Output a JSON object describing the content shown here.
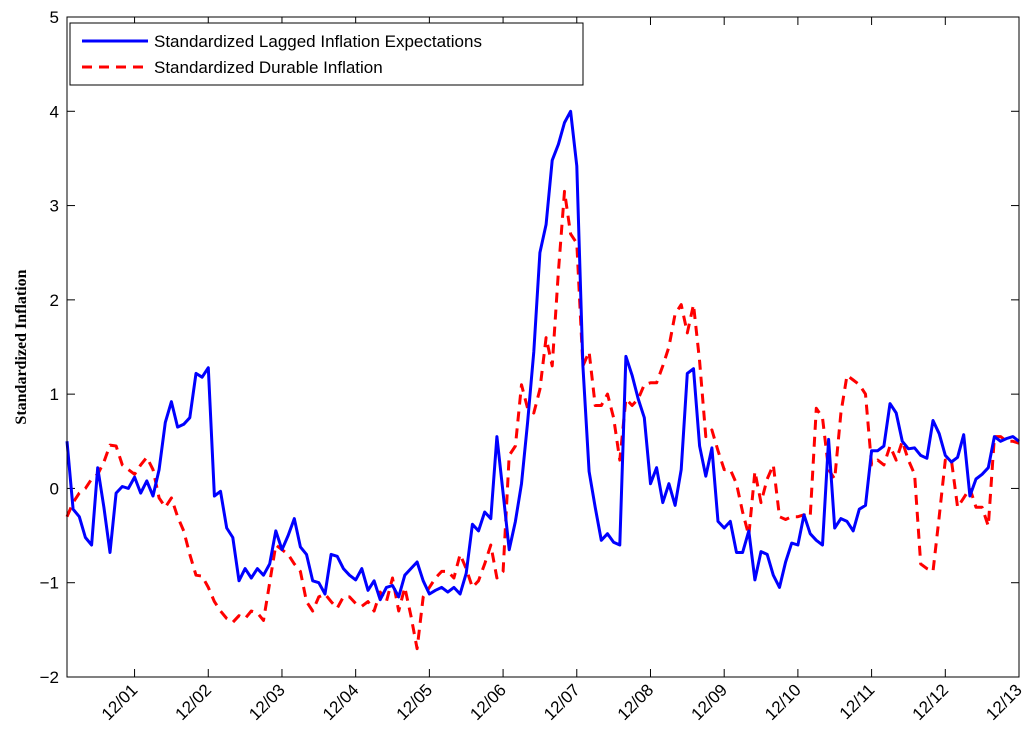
{
  "chart_data": {
    "type": "line",
    "ylabel": "Standardized Inflation",
    "categories": [
      null,
      null,
      null,
      null,
      null,
      null,
      null,
      null,
      null,
      null,
      null,
      "12/01",
      null,
      null,
      null,
      null,
      null,
      null,
      null,
      null,
      null,
      null,
      null,
      "12/02",
      null,
      null,
      null,
      null,
      null,
      null,
      null,
      null,
      null,
      null,
      null,
      "12/03",
      null,
      null,
      null,
      null,
      null,
      null,
      null,
      null,
      null,
      null,
      null,
      "12/04",
      null,
      null,
      null,
      null,
      null,
      null,
      null,
      null,
      null,
      null,
      null,
      "12/05",
      null,
      null,
      null,
      null,
      null,
      null,
      null,
      null,
      null,
      null,
      null,
      "12/06",
      null,
      null,
      null,
      null,
      null,
      null,
      null,
      null,
      null,
      null,
      null,
      "12/07",
      null,
      null,
      null,
      null,
      null,
      null,
      null,
      null,
      null,
      null,
      null,
      "12/08",
      null,
      null,
      null,
      null,
      null,
      null,
      null,
      null,
      null,
      null,
      null,
      "12/09",
      null,
      null,
      null,
      null,
      null,
      null,
      null,
      null,
      null,
      null,
      null,
      "12/10",
      null,
      null,
      null,
      null,
      null,
      null,
      null,
      null,
      null,
      null,
      null,
      "12/11",
      null,
      null,
      null,
      null,
      null,
      null,
      null,
      null,
      null,
      null,
      null,
      "12/12",
      null,
      null,
      null,
      null,
      null,
      null,
      null,
      null,
      null,
      null,
      null,
      "12/13"
    ],
    "series": [
      {
        "name": "Standardized Lagged Inflation Expectations",
        "color": "#0000ff",
        "dash": "solid",
        "values": [
          0.5,
          -0.22,
          -0.3,
          -0.52,
          -0.6,
          0.22,
          -0.2,
          -0.68,
          -0.05,
          0.02,
          0.0,
          0.12,
          -0.05,
          0.08,
          -0.08,
          0.2,
          0.7,
          0.92,
          0.65,
          0.68,
          0.75,
          1.22,
          1.18,
          1.28,
          -0.08,
          -0.03,
          -0.42,
          -0.52,
          -0.98,
          -0.85,
          -0.95,
          -0.85,
          -0.92,
          -0.8,
          -0.45,
          -0.65,
          -0.5,
          -0.32,
          -0.62,
          -0.7,
          -0.98,
          -1.0,
          -1.12,
          -0.7,
          -0.72,
          -0.85,
          -0.92,
          -0.97,
          -0.85,
          -1.08,
          -0.98,
          -1.18,
          -1.05,
          -1.03,
          -1.15,
          -0.92,
          -0.85,
          -0.78,
          -0.98,
          -1.12,
          -1.08,
          -1.05,
          -1.1,
          -1.05,
          -1.12,
          -0.9,
          -0.38,
          -0.45,
          -0.25,
          -0.32,
          0.55,
          -0.05,
          -0.65,
          -0.35,
          0.05,
          0.7,
          1.45,
          2.5,
          2.8,
          3.48,
          3.65,
          3.88,
          4.0,
          3.42,
          1.3,
          0.18,
          -0.2,
          -0.55,
          -0.48,
          -0.57,
          -0.6,
          1.4,
          1.2,
          0.95,
          0.75,
          0.05,
          0.22,
          -0.15,
          0.05,
          -0.18,
          0.2,
          1.22,
          1.27,
          0.45,
          0.13,
          0.43,
          -0.35,
          -0.42,
          -0.35,
          -0.68,
          -0.68,
          -0.45,
          -0.97,
          -0.67,
          -0.7,
          -0.92,
          -1.05,
          -0.78,
          -0.58,
          -0.6,
          -0.28,
          -0.48,
          -0.55,
          -0.6,
          0.52,
          -0.42,
          -0.32,
          -0.35,
          -0.45,
          -0.22,
          -0.18,
          0.4,
          0.4,
          0.45,
          0.9,
          0.8,
          0.5,
          0.42,
          0.43,
          0.35,
          0.32,
          0.72,
          0.58,
          0.35,
          0.28,
          0.33,
          0.57,
          -0.08,
          0.1,
          0.15,
          0.22,
          0.55,
          0.5,
          0.53,
          0.55,
          0.5
        ]
      },
      {
        "name": "Standardized Durable Inflation",
        "color": "#ff0000",
        "dash": "dashed",
        "values": [
          -0.3,
          -0.15,
          -0.05,
          0.0,
          0.1,
          0.15,
          0.28,
          0.46,
          0.45,
          0.25,
          0.2,
          0.15,
          0.25,
          0.33,
          0.2,
          -0.1,
          -0.2,
          -0.1,
          -0.3,
          -0.45,
          -0.7,
          -0.92,
          -0.93,
          -1.05,
          -1.2,
          -1.3,
          -1.38,
          -1.42,
          -1.35,
          -1.38,
          -1.3,
          -1.32,
          -1.4,
          -1.0,
          -0.6,
          -0.65,
          -0.7,
          -0.8,
          -0.88,
          -1.2,
          -1.3,
          -1.15,
          -1.12,
          -1.2,
          -1.27,
          -1.15,
          -1.15,
          -1.22,
          -1.25,
          -1.2,
          -1.3,
          -1.1,
          -1.2,
          -0.95,
          -1.3,
          -1.05,
          -1.35,
          -1.7,
          -1.15,
          -1.05,
          -0.95,
          -0.88,
          -0.88,
          -0.95,
          -0.7,
          -0.85,
          -1.05,
          -0.98,
          -0.8,
          -0.6,
          -0.95,
          -0.88,
          0.35,
          0.45,
          1.1,
          0.85,
          0.8,
          1.05,
          1.6,
          1.3,
          2.3,
          3.15,
          2.7,
          2.6,
          1.3,
          1.45,
          0.88,
          0.88,
          1.0,
          0.75,
          0.3,
          0.95,
          0.88,
          0.95,
          1.1,
          1.12,
          1.12,
          1.3,
          1.5,
          1.85,
          1.95,
          1.65,
          1.95,
          1.35,
          0.55,
          0.62,
          0.4,
          0.2,
          0.2,
          0.05,
          -0.25,
          -0.5,
          0.18,
          -0.15,
          0.1,
          0.25,
          -0.3,
          -0.33,
          -0.3,
          -0.3,
          -0.28,
          -0.3,
          0.85,
          0.75,
          0.2,
          0.1,
          0.8,
          1.2,
          1.15,
          1.1,
          1.0,
          0.25,
          0.3,
          0.25,
          0.45,
          0.3,
          0.5,
          0.3,
          0.15,
          -0.8,
          -0.85,
          -0.88,
          -0.3,
          0.3,
          0.3,
          -0.2,
          -0.1,
          0.0,
          -0.2,
          -0.2,
          -0.4,
          0.55,
          0.55,
          0.5,
          0.5,
          0.48
        ]
      }
    ],
    "ylim": [
      -2,
      5
    ],
    "yticks": [
      {
        "value": -2,
        "label": "−2"
      },
      {
        "value": -1,
        "label": "−1"
      },
      0,
      1,
      2,
      3,
      4,
      5
    ],
    "grid": false,
    "legend": "upper left"
  }
}
